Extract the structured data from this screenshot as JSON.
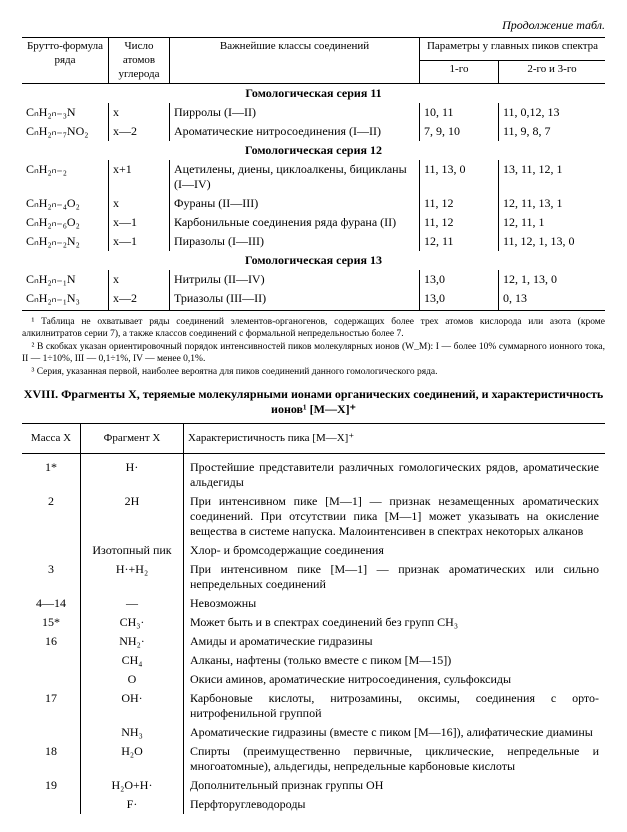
{
  "header_continuation": "Продолжение табл.",
  "t1_headers": {
    "col1": "Брутто-формула ряда",
    "col2": "Число атомов углерода",
    "col3": "Важнейшие классы соединений",
    "col4_group": "Параметры y главных пиков спектра",
    "col4a": "1-го",
    "col4b": "2-го   и   3-го"
  },
  "series11_title": "Гомологическая серия 11",
  "s11": [
    {
      "f": "CₙH₂ₙ₋₃N",
      "x": "x",
      "cls": "Пирролы (I—II)",
      "p1": "10, 11",
      "p2": "11, 0,12, 13"
    },
    {
      "f": "CₙH₂ₙ₋₇NO₂",
      "x": "x—2",
      "cls": "Ароматические нитросоединения (I—II)",
      "p1": "7, 9, 10",
      "p2": "11, 9, 8, 7"
    }
  ],
  "series12_title": "Гомологическая серия 12",
  "s12": [
    {
      "f": "CₙH₂ₙ₋₂",
      "x": "x+1",
      "cls": "Ацетилены, диены, циклоалкены, бицикланы (I—IV)",
      "p1": "11, 13, 0",
      "p2": "13, 11, 12, 1"
    },
    {
      "f": "CₙH₂ₙ₋₄O₂",
      "x": "x",
      "cls": "Фураны (II—III)",
      "p1": "11, 12",
      "p2": "12, 11, 13, 1"
    },
    {
      "f": "CₙH₂ₙ₋₆O₂",
      "x": "x—1",
      "cls": "Карбонильные соединения ряда фурана (II)",
      "p1": "11, 12",
      "p2": "12, 11, 1"
    },
    {
      "f": "CₙH₂ₙ₋₂N₂",
      "x": "x—1",
      "cls": "Пиразолы (I—III)",
      "p1": "12, 11",
      "p2": "11, 12, 1, 13, 0"
    }
  ],
  "series13_title": "Гомологическая серия 13",
  "s13": [
    {
      "f": "CₙH₂ₙ₋₁N",
      "x": "x",
      "cls": "Нитрилы (II—IV)",
      "p1": "13,0",
      "p2": "12, 1, 13, 0"
    },
    {
      "f": "CₙH₂ₙ₋₁N₃",
      "x": "x—2",
      "cls": "Триазолы (III—II)",
      "p1": "13,0",
      "p2": "0, 13"
    }
  ],
  "footnotes": {
    "f1": "¹ Таблица не охватывает ряды соединений элементов-органогенов, содержащих более трех атомов кислорода или азота (кроме алкилнитратов серии 7), а также классов соединений с формальной непредельностью более 7.",
    "f2": "² В скобках указан ориентировочный порядок интенсивностей пиков молекулярных ионов (W_M): I — более 10% суммарного ионного тока, II — 1÷10%, III — 0,1÷1%, IV — менее 0,1%.",
    "f3": "³ Серия, указанная первой, наиболее вероятна для пиков соединений данного гомологического ряда."
  },
  "caption": "XVIII. Фрагменты X, теряемые молекулярными ионами органических соединений, и характеристичность ионов¹ [M—X]⁺",
  "t2_headers": {
    "c1": "Масса X",
    "c2": "Фрагмент X",
    "c3": "Характеристичность пика [M—X]⁺"
  },
  "t2_rows": [
    {
      "m": "1*",
      "f": "H·",
      "d": "Простейшие представители различных гомологических рядов, ароматические альдегиды"
    },
    {
      "m": "2",
      "f": "2H",
      "d": "При интенсивном пике [M—1] — признак незамещенных ароматических соединений. При отсутствии пика [M—1] может указывать на окисление вещества в системе напуска. Малоинтенсивен в спектрах некоторых алканов"
    },
    {
      "m": "",
      "f": "Изотопный пик",
      "d": "Хлор- и бромсодержащие соединения"
    },
    {
      "m": "3",
      "f": "H·+H₂",
      "d": "При интенсивном пике [M—1] — признак ароматических или сильно непредельных соединений"
    },
    {
      "m": "4—14",
      "f": "—",
      "d": "Невозможны"
    },
    {
      "m": "15*",
      "f": "CH₃·",
      "d": "Может быть и в спектрах соединений без групп CH₃"
    },
    {
      "m": "16",
      "f": "NH₂·",
      "d": "Амиды и ароматические гидразины"
    },
    {
      "m": "",
      "f": "CH₄",
      "d": "Алканы, нафтены (только вместе с пиком [M—15])"
    },
    {
      "m": "",
      "f": "O",
      "d": "Окиси аминов, ароматические нитросоединения, сульфоксиды"
    },
    {
      "m": "17",
      "f": "OH·",
      "d": "Карбоновые кислоты, нитрозамины, оксимы, соединения с орто-нитрофенильной группой"
    },
    {
      "m": "",
      "f": "NH₃",
      "d": "Ароматические гидразины (вместе с пиком [M—16]), алифатические диамины"
    },
    {
      "m": "18",
      "f": "H₂O",
      "d": "Спирты (преимущественно первичные, циклические, непредельные и многоатомные), альдегиды, непредельные карбоновые кислоты"
    },
    {
      "m": "19",
      "f": "H₂O+H·",
      "d": "Дополнительный признак группы OH"
    },
    {
      "m": "",
      "f": "F·",
      "d": "Перфторуглеводороды"
    }
  ]
}
